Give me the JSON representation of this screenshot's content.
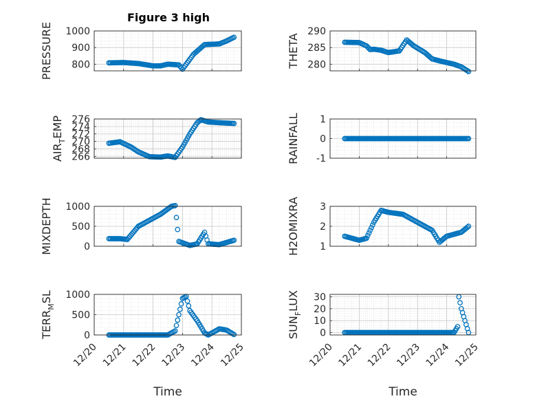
{
  "figure": {
    "title": "Figure 3 high",
    "marker_color": "#0072BD",
    "marker": "open circle",
    "grid": "major and minor (dotted)"
  },
  "chart_data": [
    {
      "type": "scatter",
      "ylabel": "PRESSURE",
      "xlabel": "",
      "xlim": [
        "12/20",
        "12/25"
      ],
      "ylim": [
        760,
        1000
      ],
      "yticks": [
        "800",
        "900",
        "1000"
      ],
      "x_range": [
        "12/20 12:00",
        "12/24 18:00"
      ],
      "profile": [
        [
          "12/20 12:00",
          808
        ],
        [
          "12/21 00:00",
          810
        ],
        [
          "12/21 12:00",
          804
        ],
        [
          "12/22 00:00",
          790
        ],
        [
          "12/22 06:00",
          790
        ],
        [
          "12/22 12:00",
          800
        ],
        [
          "12/22 21:00",
          796
        ],
        [
          "12/23 00:00",
          770
        ],
        [
          "12/23 03:00",
          800
        ],
        [
          "12/23 09:00",
          860
        ],
        [
          "12/23 18:00",
          918
        ],
        [
          "12/24 06:00",
          922
        ],
        [
          "12/24 12:00",
          940
        ],
        [
          "12/24 18:00",
          962
        ]
      ]
    },
    {
      "type": "scatter",
      "ylabel": "THETA",
      "xlabel": "",
      "xlim": [
        "12/20",
        "12/25"
      ],
      "ylim": [
        278,
        290
      ],
      "yticks": [
        "280",
        "285",
        "290"
      ],
      "x_range": [
        "12/20 12:00",
        "12/24 18:00"
      ],
      "profile": [
        [
          "12/20 12:00",
          286.6
        ],
        [
          "12/21 00:00",
          286.5
        ],
        [
          "12/21 06:00",
          285.5
        ],
        [
          "12/21 09:00",
          284.4
        ],
        [
          "12/21 12:00",
          284.5
        ],
        [
          "12/21 18:00",
          284.2
        ],
        [
          "12/22 00:00",
          283.5
        ],
        [
          "12/22 09:00",
          284.0
        ],
        [
          "12/22 15:00",
          287.3
        ],
        [
          "12/22 21:00",
          285.5
        ],
        [
          "12/23 06:00",
          283.5
        ],
        [
          "12/23 12:00",
          281.6
        ],
        [
          "12/23 18:00",
          281.0
        ],
        [
          "12/24 06:00",
          280.0
        ],
        [
          "12/24 12:00",
          279.2
        ],
        [
          "12/24 18:00",
          277.8
        ]
      ]
    },
    {
      "type": "scatter",
      "ylabel": "AIR_TEMP",
      "xlabel": "",
      "xlim": [
        "12/20",
        "12/25"
      ],
      "ylim": [
        265.5,
        276
      ],
      "yticks": [
        "266",
        "268",
        "270",
        "272",
        "274",
        "276"
      ],
      "x_range": [
        "12/20 12:00",
        "12/24 18:00"
      ],
      "profile": [
        [
          "12/20 12:00",
          269.5
        ],
        [
          "12/20 21:00",
          269.9
        ],
        [
          "12/21 06:00",
          268.5
        ],
        [
          "12/21 12:00",
          267.2
        ],
        [
          "12/21 21:00",
          265.9
        ],
        [
          "12/22 06:00",
          265.8
        ],
        [
          "12/22 12:00",
          266.1
        ],
        [
          "12/22 18:00",
          265.7
        ],
        [
          "12/23 00:00",
          268.5
        ],
        [
          "12/23 06:00",
          272.0
        ],
        [
          "12/23 12:00",
          275.0
        ],
        [
          "12/23 15:00",
          275.8
        ],
        [
          "12/23 21:00",
          275.2
        ],
        [
          "12/24 06:00",
          275.0
        ],
        [
          "12/24 18:00",
          274.8
        ]
      ]
    },
    {
      "type": "scatter",
      "ylabel": "RAINFALL",
      "xlabel": "",
      "xlim": [
        "12/20",
        "12/25"
      ],
      "ylim": [
        -1,
        1
      ],
      "yticks": [
        "-1",
        "0",
        "1"
      ],
      "x_range": [
        "12/20 12:00",
        "12/24 18:00"
      ],
      "profile": [
        [
          "12/20 12:00",
          0
        ],
        [
          "12/24 18:00",
          0
        ]
      ]
    },
    {
      "type": "scatter",
      "ylabel": "MIXDEPTH",
      "xlabel": "",
      "xlim": [
        "12/20",
        "12/25"
      ],
      "ylim": [
        0,
        1000
      ],
      "yticks": [
        "0",
        "500",
        "1000"
      ],
      "x_range": [
        "12/20 12:00",
        "12/24 18:00"
      ],
      "profile": [
        [
          "12/20 12:00",
          190
        ],
        [
          "12/20 21:00",
          190
        ],
        [
          "12/21 03:00",
          170
        ],
        [
          "12/21 12:00",
          500
        ],
        [
          "12/21 18:00",
          600
        ],
        [
          "12/22 06:00",
          800
        ],
        [
          "12/22 15:00",
          1000
        ],
        [
          "12/22 18:00",
          1020
        ],
        [
          "12/22 21:00",
          120
        ],
        [
          "12/23 06:00",
          20
        ],
        [
          "12/23 12:00",
          60
        ],
        [
          "12/23 18:00",
          350
        ],
        [
          "12/23 21:00",
          60
        ],
        [
          "12/24 06:00",
          40
        ],
        [
          "12/24 18:00",
          150
        ]
      ]
    },
    {
      "type": "scatter",
      "ylabel": "H2OMIXRA",
      "xlabel": "",
      "xlim": [
        "12/20",
        "12/25"
      ],
      "ylim": [
        1,
        3
      ],
      "yticks": [
        "1",
        "2",
        "3"
      ],
      "x_range": [
        "12/20 12:00",
        "12/24 18:00"
      ],
      "profile": [
        [
          "12/20 12:00",
          1.5
        ],
        [
          "12/20 18:00",
          1.4
        ],
        [
          "12/21 00:00",
          1.3
        ],
        [
          "12/21 06:00",
          1.4
        ],
        [
          "12/21 12:00",
          2.2
        ],
        [
          "12/21 18:00",
          2.8
        ],
        [
          "12/22 00:00",
          2.7
        ],
        [
          "12/22 12:00",
          2.6
        ],
        [
          "12/23 00:00",
          2.2
        ],
        [
          "12/23 12:00",
          1.8
        ],
        [
          "12/23 18:00",
          1.2
        ],
        [
          "12/24 00:00",
          1.5
        ],
        [
          "12/24 12:00",
          1.7
        ],
        [
          "12/24 18:00",
          2.0
        ]
      ]
    },
    {
      "type": "scatter",
      "ylabel": "TERR_MSL",
      "xlabel": "Time",
      "xlim": [
        "12/20",
        "12/25"
      ],
      "ylim": [
        0,
        1000
      ],
      "yticks": [
        "0",
        "500",
        "1000"
      ],
      "xticks": [
        "12/20",
        "12/21",
        "12/22",
        "12/23",
        "12/24",
        "12/25"
      ],
      "x_range": [
        "12/20 12:00",
        "12/24 18:00"
      ],
      "profile": [
        [
          "12/20 12:00",
          0
        ],
        [
          "12/22 12:00",
          0
        ],
        [
          "12/22 18:00",
          100
        ],
        [
          "12/23 00:00",
          900
        ],
        [
          "12/23 03:00",
          950
        ],
        [
          "12/23 06:00",
          600
        ],
        [
          "12/23 12:00",
          350
        ],
        [
          "12/23 18:00",
          50
        ],
        [
          "12/23 21:00",
          0
        ],
        [
          "12/24 06:00",
          150
        ],
        [
          "12/24 12:00",
          120
        ],
        [
          "12/24 18:00",
          10
        ]
      ]
    },
    {
      "type": "scatter",
      "ylabel": "SUN_FLUX",
      "xlabel": "Time",
      "xlim": [
        "12/20",
        "12/25"
      ],
      "ylim": [
        -2,
        32
      ],
      "yticks": [
        "0",
        "10",
        "20",
        "30"
      ],
      "xticks": [
        "12/20",
        "12/21",
        "12/22",
        "12/23",
        "12/24",
        "12/25"
      ],
      "x_range": [
        "12/20 12:00",
        "12/24 18:00"
      ],
      "profile": [
        [
          "12/20 12:00",
          0
        ],
        [
          "12/24 06:00",
          0
        ],
        [
          "12/24 09:00",
          5
        ],
        [
          "12/24 10:00",
          30
        ],
        [
          "12/24 12:00",
          20
        ],
        [
          "12/24 15:00",
          10
        ],
        [
          "12/24 18:00",
          0
        ]
      ]
    }
  ]
}
